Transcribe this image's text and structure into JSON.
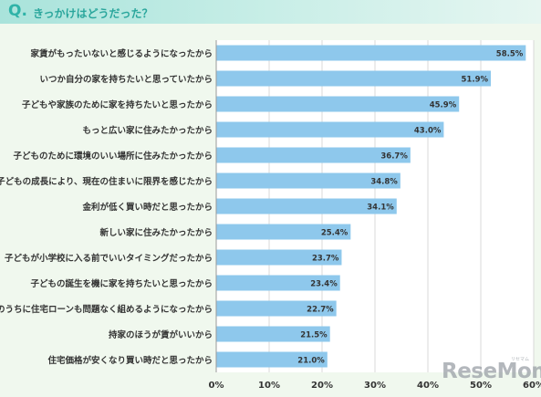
{
  "header": {
    "q_mark": "Q.",
    "question": "きっかけはどうだった？"
  },
  "watermark": {
    "text": "ReseMom",
    "sub": "リセマム"
  },
  "chart_data": {
    "type": "bar",
    "orientation": "horizontal",
    "title": "きっかけはどうだった？",
    "categories": [
      "家賃がもったいないと感じるようになったから",
      "いつか自分の家を持ちたいと思っていたから",
      "子どもや家族のために家を持ちたいと思ったから",
      "もっと広い家に住みたかったから",
      "子どものために環境のいい場所に住みたかったから",
      "子どもの成長により、現在の住まいに限界を感じたから",
      "金利が低く買い時だと思ったから",
      "新しい家に住みたかったから",
      "子どもが小学校に入る前でいいタイミングだったから",
      "子どもの誕生を機に家を持ちたいと思ったから",
      "今のうちに住宅ローンも問題なく組めるようになったから",
      "持家のほうが賃がいいから",
      "住宅価格が安くなり買い時だと思ったから"
    ],
    "values": [
      58.5,
      51.9,
      45.9,
      43.0,
      36.7,
      34.8,
      34.1,
      25.4,
      23.7,
      23.4,
      22.7,
      21.5,
      21.0
    ],
    "value_labels": [
      "58.5%",
      "51.9%",
      "45.9%",
      "43.0%",
      "36.7%",
      "34.8%",
      "34.1%",
      "25.4%",
      "23.7%",
      "23.4%",
      "22.7%",
      "21.5%",
      "21.0%"
    ],
    "xlim": [
      0,
      60
    ],
    "xticks": [
      0,
      10,
      20,
      30,
      40,
      50,
      60
    ],
    "xtick_labels": [
      "0%",
      "10%",
      "20%",
      "30%",
      "40%",
      "50%",
      "60%"
    ],
    "grid": "vertical",
    "colors": {
      "bar": "#8ec8ec",
      "plot_bg": "#ffffff",
      "grid": "#d8d8d8",
      "text": "#333333"
    }
  }
}
